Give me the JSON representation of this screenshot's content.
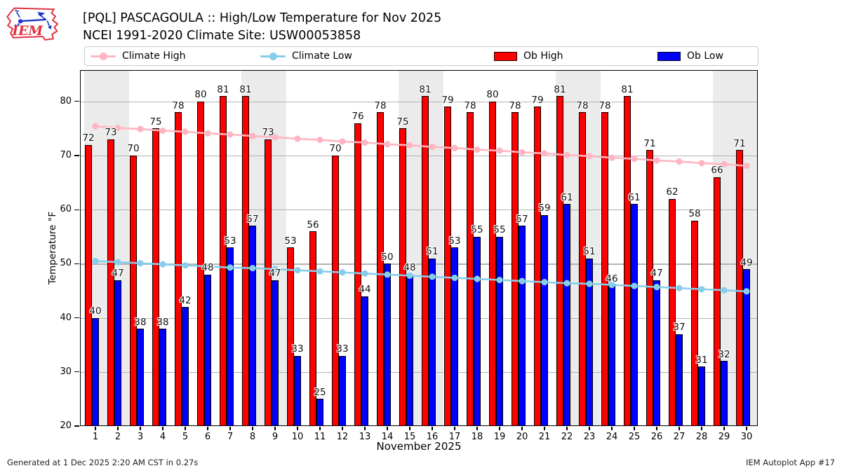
{
  "header": {
    "title_line1": "[PQL] PASCAGOULA :: High/Low Temperature for Nov 2025",
    "title_line2": "NCEI 1991-2020 Climate Site: USW00053858",
    "logo_text": "IEM"
  },
  "legend": {
    "items": [
      {
        "label": "Climate High",
        "type": "line",
        "color": "#ffb6c1"
      },
      {
        "label": "Climate Low",
        "type": "line",
        "color": "#87ceeb"
      },
      {
        "label": "Ob High",
        "type": "patch",
        "color": "#ff0000"
      },
      {
        "label": "Ob Low",
        "type": "patch",
        "color": "#0000ff"
      }
    ]
  },
  "footer": {
    "left": "Generated at 1 Dec 2025 2:20 AM CST in 0.27s",
    "right": "IEM Autoplot App #17"
  },
  "chart_data": {
    "type": "bar",
    "title": "[PQL] PASCAGOULA :: High/Low Temperature for Nov 2025",
    "subtitle": "NCEI 1991-2020 Climate Site: USW00053858",
    "xlabel": "November 2025",
    "ylabel": "Temperature °F",
    "ylim": [
      20,
      85.8
    ],
    "yticks": [
      20,
      30,
      40,
      50,
      60,
      70,
      80
    ],
    "grid": true,
    "legend_position": "top",
    "days": [
      1,
      2,
      3,
      4,
      5,
      6,
      7,
      8,
      9,
      10,
      11,
      12,
      13,
      14,
      15,
      16,
      17,
      18,
      19,
      20,
      21,
      22,
      23,
      24,
      25,
      26,
      27,
      28,
      29,
      30
    ],
    "weekend_bands": [
      [
        1,
        2
      ],
      [
        8,
        9
      ],
      [
        15,
        16
      ],
      [
        22,
        23
      ],
      [
        29,
        30
      ]
    ],
    "band_color": "#ebebeb",
    "grid_color": "#b3b3b3",
    "series": [
      {
        "name": "Ob High",
        "style": "bar",
        "color": "#ff0000",
        "values": [
          72,
          73,
          70,
          75,
          78,
          80,
          81,
          81,
          73,
          53,
          56,
          70,
          76,
          78,
          75,
          81,
          79,
          78,
          80,
          78,
          79,
          81,
          78,
          78,
          81,
          71,
          62,
          58,
          66,
          71
        ]
      },
      {
        "name": "Ob Low",
        "style": "bar",
        "color": "#0000ff",
        "values": [
          40,
          47,
          38,
          38,
          42,
          48,
          53,
          57,
          47,
          33,
          25,
          33,
          44,
          50,
          48,
          51,
          53,
          55,
          55,
          57,
          59,
          61,
          51,
          46,
          61,
          47,
          37,
          31,
          32,
          49
        ]
      },
      {
        "name": "Climate High",
        "style": "line",
        "color": "#ffb6c1",
        "values": [
          75.4,
          75.1,
          74.9,
          74.6,
          74.4,
          74.1,
          73.9,
          73.6,
          73.4,
          73.1,
          72.9,
          72.6,
          72.4,
          72.1,
          71.9,
          71.6,
          71.4,
          71.1,
          70.9,
          70.6,
          70.4,
          70.1,
          69.9,
          69.6,
          69.4,
          69.1,
          68.9,
          68.6,
          68.4,
          68.1
        ]
      },
      {
        "name": "Climate Low",
        "style": "line",
        "color": "#87ceeb",
        "values": [
          50.5,
          50.3,
          50.1,
          49.9,
          49.7,
          49.5,
          49.3,
          49.2,
          49.0,
          48.8,
          48.6,
          48.4,
          48.2,
          48.0,
          47.8,
          47.6,
          47.4,
          47.2,
          47.0,
          46.8,
          46.6,
          46.4,
          46.3,
          46.1,
          45.9,
          45.7,
          45.5,
          45.3,
          45.1,
          44.9
        ]
      }
    ]
  }
}
